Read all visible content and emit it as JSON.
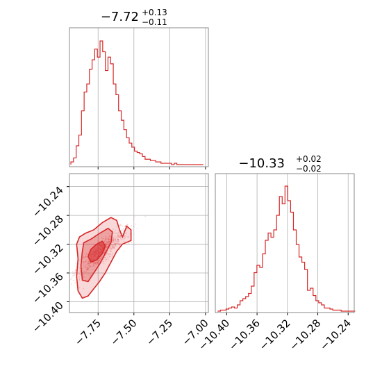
{
  "colors": {
    "accent": "#d62728"
  },
  "chart_data": [
    {
      "type": "histogram",
      "title_value": "−7.72",
      "title_plus": "+0.13",
      "title_minus": "−0.11",
      "xlim": [
        -7.95,
        -6.98
      ],
      "x_ticks": [
        -7.75,
        -7.5,
        -7.25,
        -7.0
      ],
      "bin_width": 0.0185,
      "bins_x": [
        -7.94,
        -7.9215,
        -7.903,
        -7.8845,
        -7.866,
        -7.8475,
        -7.829,
        -7.8105,
        -7.792,
        -7.7735,
        -7.755,
        -7.7365,
        -7.718,
        -7.6995,
        -7.681,
        -7.6625,
        -7.644,
        -7.6255,
        -7.607,
        -7.5885,
        -7.57,
        -7.5515,
        -7.533,
        -7.5145,
        -7.496,
        -7.4775,
        -7.459,
        -7.4405,
        -7.422,
        -7.4035,
        -7.385,
        -7.3665,
        -7.348,
        -7.3295,
        -7.311,
        -7.2925,
        -7.274,
        -7.2555,
        -7.237,
        -7.2185,
        -7.2,
        -7.1815,
        -7.163,
        -7.1445,
        -7.126,
        -7.1075,
        -7.089,
        -7.0705,
        -7.052,
        -7.0335,
        -7.015
      ],
      "counts": [
        2,
        5,
        14,
        22,
        40,
        54,
        60,
        71,
        78,
        86,
        80,
        92,
        84,
        70,
        80,
        75,
        60,
        52,
        40,
        33,
        26,
        20,
        16,
        13,
        10,
        9,
        8,
        6,
        4,
        4,
        3,
        3,
        2,
        2,
        1,
        1,
        1,
        1,
        0,
        1,
        0,
        0,
        0,
        0,
        0,
        0,
        0,
        0,
        0,
        0
      ]
    },
    {
      "type": "scatter_contour",
      "xlim": [
        -7.95,
        -6.98
      ],
      "ylim": [
        -10.415,
        -10.222
      ],
      "x_ticks": [
        -7.75,
        -7.5,
        -7.25,
        -7.0
      ],
      "y_ticks": [
        -10.24,
        -10.28,
        -10.32,
        -10.36,
        -10.4
      ],
      "tick_labels_x": [
        "−7.75",
        "−7.50",
        "−7.25",
        "−7.00"
      ],
      "tick_labels_y": [
        "−10.24",
        "−10.28",
        "−10.32",
        "−10.36",
        "−10.40"
      ],
      "correlation_center": [
        -7.72,
        -10.33
      ],
      "contour_outer": [
        [
          -7.88,
          -10.31
        ],
        [
          -7.84,
          -10.305
        ],
        [
          -7.78,
          -10.3
        ],
        [
          -7.72,
          -10.29
        ],
        [
          -7.66,
          -10.283
        ],
        [
          -7.62,
          -10.287
        ],
        [
          -7.6,
          -10.3
        ],
        [
          -7.58,
          -10.31
        ],
        [
          -7.55,
          -10.295
        ],
        [
          -7.52,
          -10.3
        ],
        [
          -7.52,
          -10.315
        ],
        [
          -7.58,
          -10.32
        ],
        [
          -7.62,
          -10.33
        ],
        [
          -7.66,
          -10.345
        ],
        [
          -7.7,
          -10.36
        ],
        [
          -7.74,
          -10.372
        ],
        [
          -7.78,
          -10.382
        ],
        [
          -7.82,
          -10.392
        ],
        [
          -7.86,
          -10.395
        ],
        [
          -7.89,
          -10.385
        ],
        [
          -7.9,
          -10.365
        ],
        [
          -7.89,
          -10.34
        ],
        [
          -7.9,
          -10.32
        ]
      ],
      "contour_middle": [
        [
          -7.85,
          -10.318
        ],
        [
          -7.8,
          -10.313
        ],
        [
          -7.74,
          -10.305
        ],
        [
          -7.68,
          -10.298
        ],
        [
          -7.65,
          -10.303
        ],
        [
          -7.66,
          -10.318
        ],
        [
          -7.7,
          -10.333
        ],
        [
          -7.74,
          -10.348
        ],
        [
          -7.78,
          -10.36
        ],
        [
          -7.82,
          -10.372
        ],
        [
          -7.86,
          -10.37
        ],
        [
          -7.87,
          -10.35
        ],
        [
          -7.86,
          -10.33
        ]
      ],
      "contour_inner": [
        [
          -7.8,
          -10.327
        ],
        [
          -7.76,
          -10.32
        ],
        [
          -7.72,
          -10.316
        ],
        [
          -7.7,
          -10.322
        ],
        [
          -7.72,
          -10.333
        ],
        [
          -7.76,
          -10.342
        ],
        [
          -7.8,
          -10.345
        ],
        [
          -7.82,
          -10.337
        ]
      ]
    },
    {
      "type": "histogram",
      "title_value": "−10.33",
      "title_plus": "+0.02",
      "title_minus": "−0.02",
      "xlim": [
        -10.415,
        -10.232
      ],
      "x_ticks": [
        -10.4,
        -10.36,
        -10.32,
        -10.28,
        -10.24
      ],
      "tick_labels_x": [
        "−10.40",
        "−10.36",
        "−10.32",
        "−10.28",
        "−10.24"
      ],
      "bin_width": 0.0037,
      "bins_x": [
        -10.412,
        -10.4083,
        -10.4046,
        -10.4009,
        -10.3972,
        -10.3935,
        -10.3898,
        -10.3861,
        -10.3824,
        -10.3787,
        -10.375,
        -10.3713,
        -10.3676,
        -10.3639,
        -10.3602,
        -10.3565,
        -10.3528,
        -10.3491,
        -10.3454,
        -10.3417,
        -10.338,
        -10.3343,
        -10.3306,
        -10.3269,
        -10.3232,
        -10.3195,
        -10.3158,
        -10.3121,
        -10.3084,
        -10.3047,
        -10.301,
        -10.2973,
        -10.2936,
        -10.2899,
        -10.2862,
        -10.2825,
        -10.2788,
        -10.2751,
        -10.2714,
        -10.2677,
        -10.264,
        -10.2603,
        -10.2566,
        -10.2529,
        -10.2492,
        -10.2455,
        -10.2418,
        -10.2381,
        -10.2344
      ],
      "counts": [
        0,
        1,
        1,
        2,
        3,
        4,
        3,
        6,
        10,
        12,
        14,
        17,
        24,
        37,
        44,
        42,
        55,
        68,
        75,
        71,
        78,
        92,
        110,
        103,
        120,
        106,
        95,
        78,
        64,
        52,
        47,
        40,
        20,
        22,
        15,
        10,
        8,
        6,
        3,
        3,
        2,
        1,
        1,
        1,
        0,
        0,
        0,
        0,
        0
      ]
    }
  ]
}
